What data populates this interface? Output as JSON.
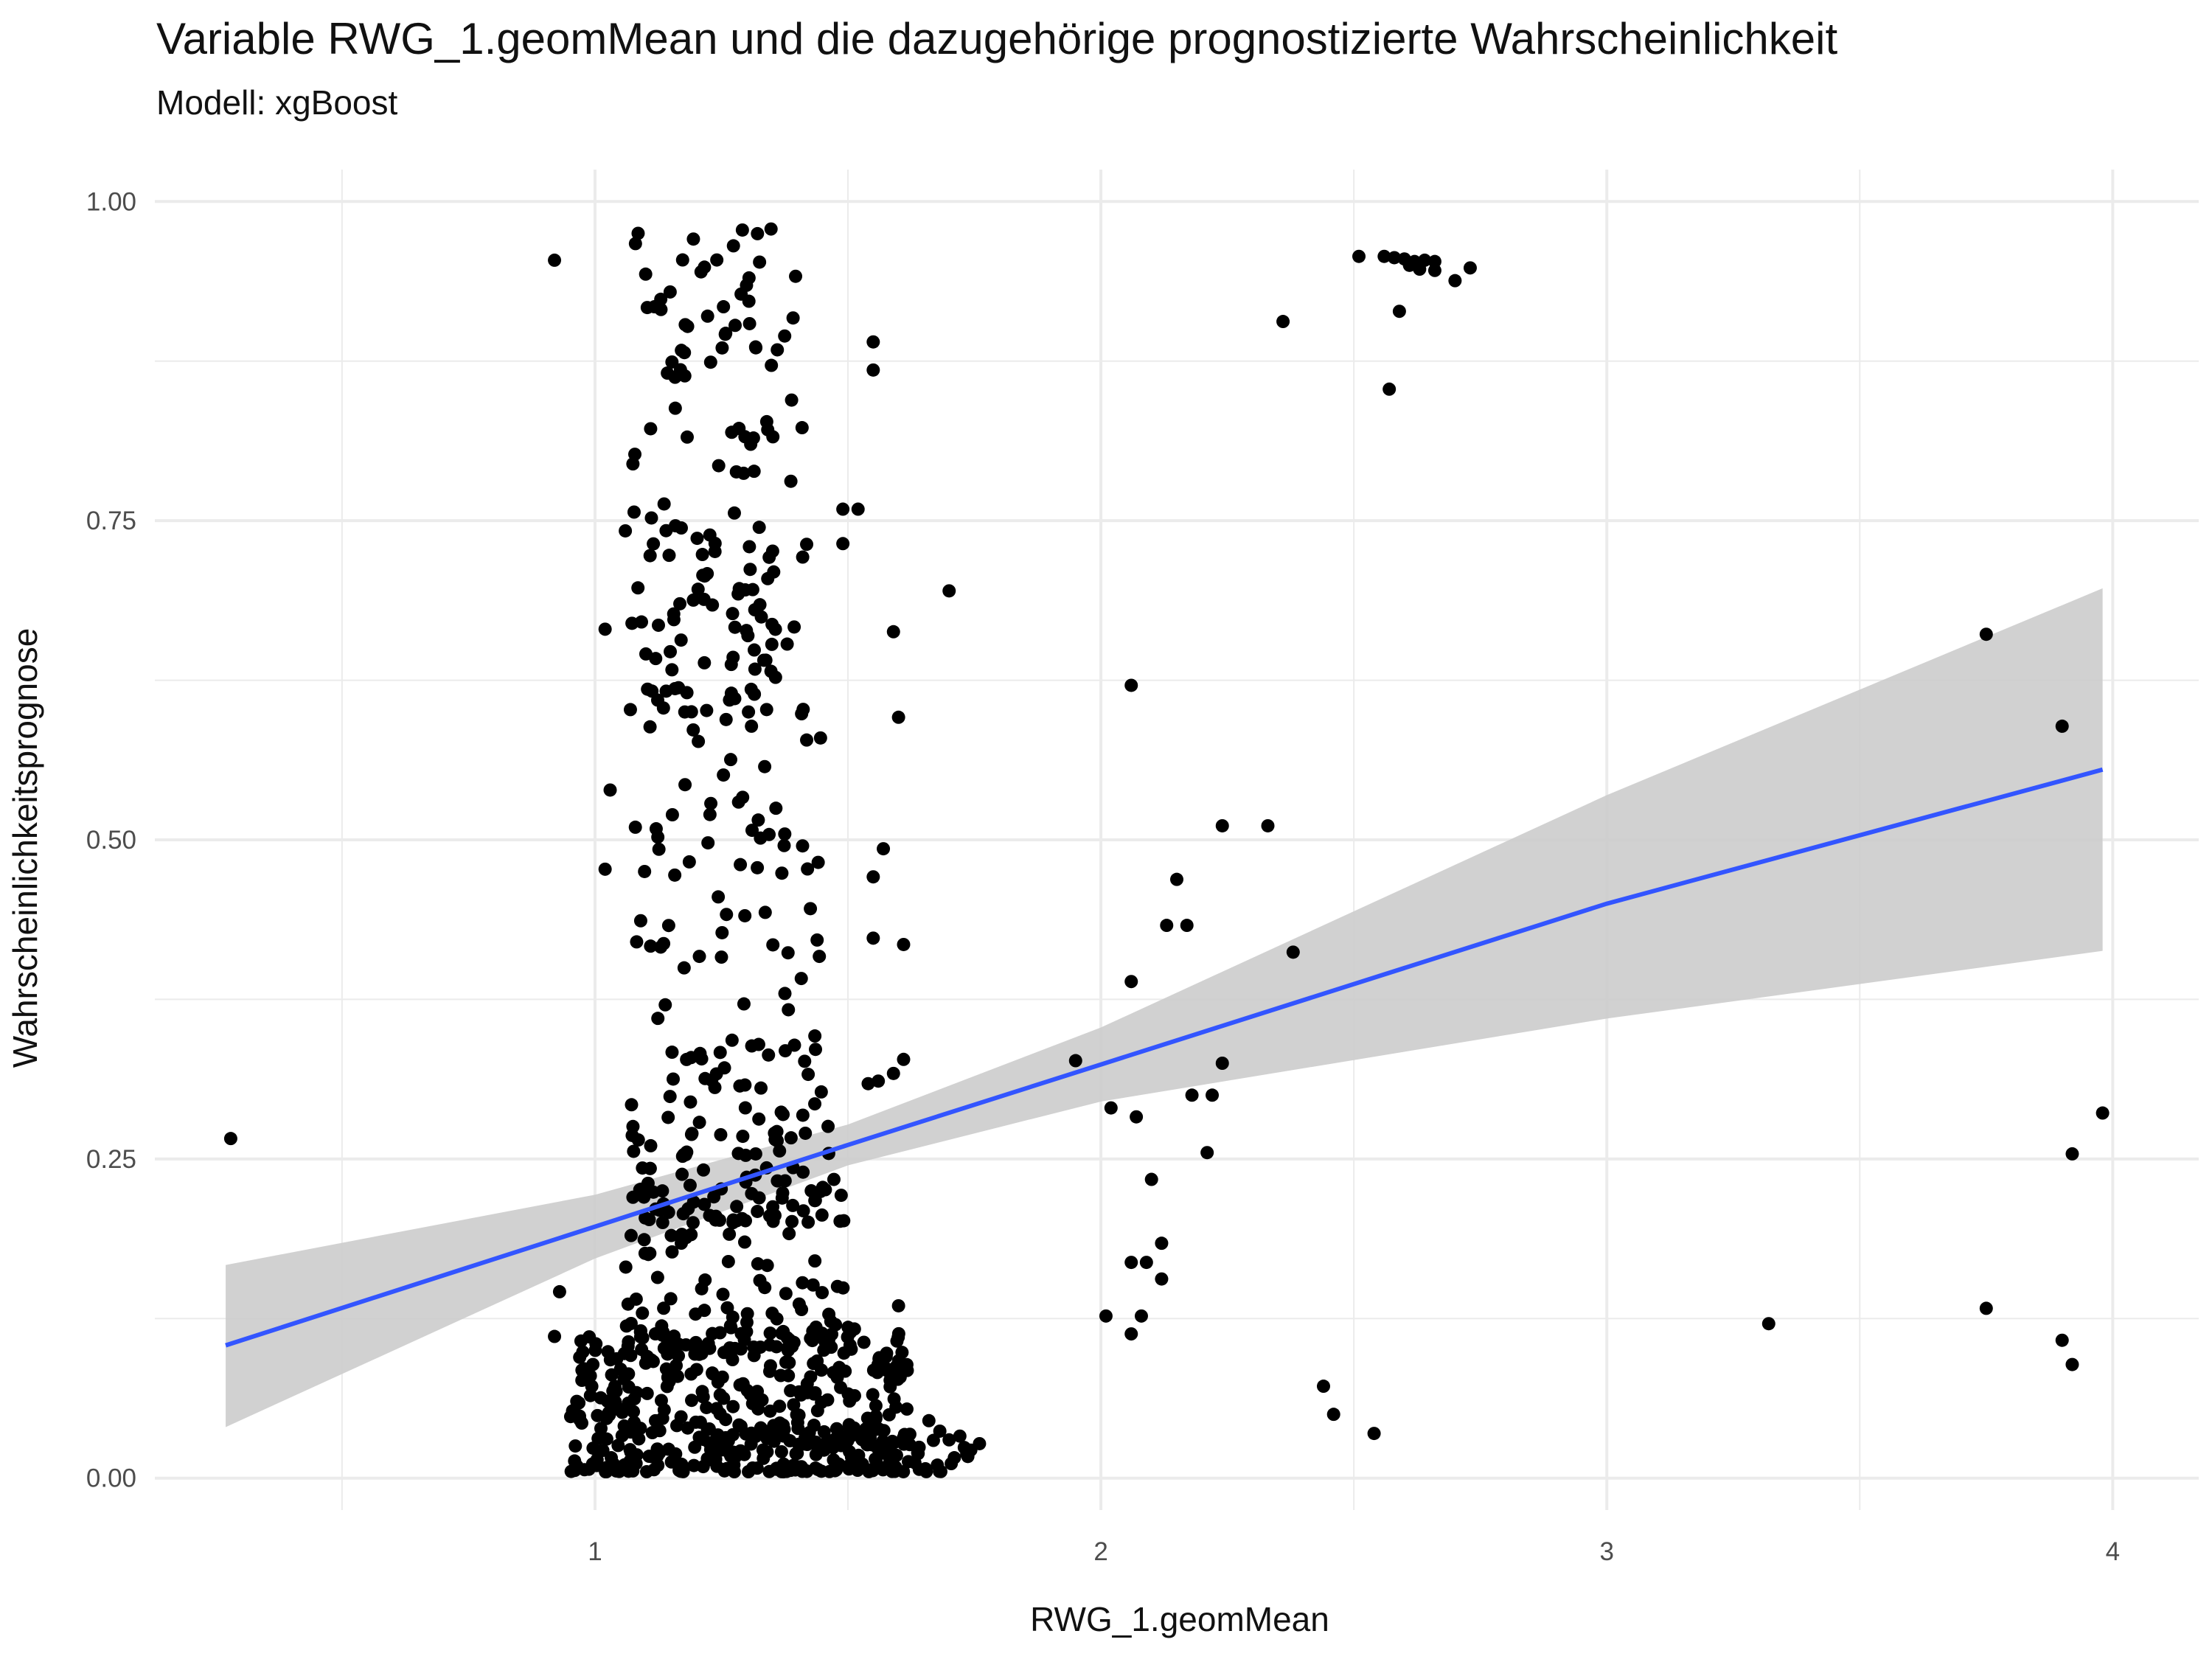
{
  "title": "Variable RWG_1.geomMean und die dazugehörige prognostizierte Wahrscheinlichkeit",
  "subtitle": "Modell: xgBoost",
  "chart_data": {
    "type": "scatter",
    "title": "Variable RWG_1.geomMean und die dazugehörige prognostizierte Wahrscheinlichkeit",
    "subtitle": "Modell: xgBoost",
    "xlabel": "RWG_1.geomMean",
    "ylabel": "Wahrscheinlichkeitsprognose",
    "xlim": [
      0.13,
      4.17
    ],
    "ylim": [
      -0.025,
      1.025
    ],
    "x_ticks": [
      1,
      2,
      3,
      4
    ],
    "x_tick_labels": [
      "1",
      "2",
      "3",
      "4"
    ],
    "y_ticks": [
      0,
      0.25,
      0.5,
      0.75,
      1
    ],
    "y_tick_labels": [
      "0.00",
      "0.25",
      "0.50",
      "0.75",
      "1.00"
    ],
    "grid": true,
    "colors": {
      "points": "#000000",
      "trend_line": "#3355ff",
      "confidence_band": "#cccccc",
      "grid": "#ebebeb"
    },
    "trend": {
      "type": "linear fit with confidence band",
      "x": [
        0.27,
        1.0,
        1.5,
        2.0,
        3.0,
        3.98
      ],
      "fit": [
        0.104,
        0.197,
        0.261,
        0.324,
        0.45,
        0.555
      ],
      "lower": [
        0.04,
        0.172,
        0.245,
        0.295,
        0.36,
        0.413
      ],
      "upper": [
        0.167,
        0.222,
        0.277,
        0.353,
        0.535,
        0.697
      ]
    },
    "explicit_points": [
      [
        0.28,
        0.266
      ],
      [
        0.92,
        0.954
      ],
      [
        1.08,
        0.967
      ],
      [
        1.02,
        0.665
      ],
      [
        1.06,
        0.742
      ],
      [
        1.07,
        0.602
      ],
      [
        1.03,
        0.539
      ],
      [
        1.02,
        0.477
      ],
      [
        1.11,
        0.822
      ],
      [
        1.12,
        0.642
      ],
      [
        1.13,
        0.416
      ],
      [
        0.93,
        0.146
      ],
      [
        0.92,
        0.111
      ],
      [
        1.55,
        0.89
      ],
      [
        1.55,
        0.868
      ],
      [
        1.49,
        0.759
      ],
      [
        1.52,
        0.759
      ],
      [
        1.49,
        0.732
      ],
      [
        1.7,
        0.695
      ],
      [
        1.59,
        0.663
      ],
      [
        1.57,
        0.493
      ],
      [
        1.6,
        0.596
      ],
      [
        1.55,
        0.471
      ],
      [
        1.55,
        0.423
      ],
      [
        1.61,
        0.418
      ],
      [
        1.61,
        0.328
      ],
      [
        1.59,
        0.317
      ],
      [
        1.56,
        0.311
      ],
      [
        1.54,
        0.309
      ],
      [
        1.66,
        0.045
      ],
      [
        1.7,
        0.03
      ],
      [
        1.76,
        0.027
      ],
      [
        1.73,
        0.024
      ],
      [
        1.6,
        0.135
      ],
      [
        2.51,
        0.957
      ],
      [
        2.56,
        0.957
      ],
      [
        2.58,
        0.956
      ],
      [
        2.6,
        0.955
      ],
      [
        2.62,
        0.953
      ],
      [
        2.64,
        0.954
      ],
      [
        2.66,
        0.953
      ],
      [
        2.63,
        0.947
      ],
      [
        2.61,
        0.95
      ],
      [
        2.66,
        0.946
      ],
      [
        2.73,
        0.948
      ],
      [
        2.7,
        0.938
      ],
      [
        2.59,
        0.914
      ],
      [
        2.57,
        0.853
      ],
      [
        2.36,
        0.906
      ],
      [
        2.06,
        0.621
      ],
      [
        2.24,
        0.511
      ],
      [
        2.33,
        0.511
      ],
      [
        2.15,
        0.469
      ],
      [
        2.13,
        0.433
      ],
      [
        2.17,
        0.433
      ],
      [
        2.38,
        0.412
      ],
      [
        2.06,
        0.389
      ],
      [
        1.95,
        0.327
      ],
      [
        2.24,
        0.325
      ],
      [
        2.18,
        0.3
      ],
      [
        2.22,
        0.3
      ],
      [
        2.02,
        0.29
      ],
      [
        2.07,
        0.283
      ],
      [
        2.21,
        0.255
      ],
      [
        2.1,
        0.234
      ],
      [
        2.12,
        0.184
      ],
      [
        2.06,
        0.169
      ],
      [
        2.09,
        0.169
      ],
      [
        2.12,
        0.156
      ],
      [
        2.01,
        0.127
      ],
      [
        2.08,
        0.127
      ],
      [
        2.06,
        0.113
      ],
      [
        2.44,
        0.072
      ],
      [
        2.46,
        0.05
      ],
      [
        2.54,
        0.035
      ],
      [
        3.32,
        0.121
      ],
      [
        3.75,
        0.661
      ],
      [
        3.9,
        0.589
      ],
      [
        3.98,
        0.286
      ],
      [
        3.92,
        0.254
      ],
      [
        3.75,
        0.133
      ],
      [
        3.9,
        0.108
      ],
      [
        3.92,
        0.089
      ]
    ],
    "cluster_points": [
      {
        "x_range": [
          1.07,
          1.42
        ],
        "y_range": [
          0.6,
          0.98
        ],
        "count": 150
      },
      {
        "x_range": [
          1.07,
          1.45
        ],
        "y_range": [
          0.2,
          0.6
        ],
        "count": 150
      },
      {
        "x_range": [
          1.06,
          1.5
        ],
        "y_range": [
          0.1,
          0.3
        ],
        "count": 120
      },
      {
        "x_range": [
          0.95,
          1.62
        ],
        "y_range": [
          0.005,
          0.12
        ],
        "count": 430
      },
      {
        "x_range": [
          1.5,
          1.75
        ],
        "y_range": [
          0.005,
          0.04
        ],
        "count": 40
      }
    ]
  }
}
